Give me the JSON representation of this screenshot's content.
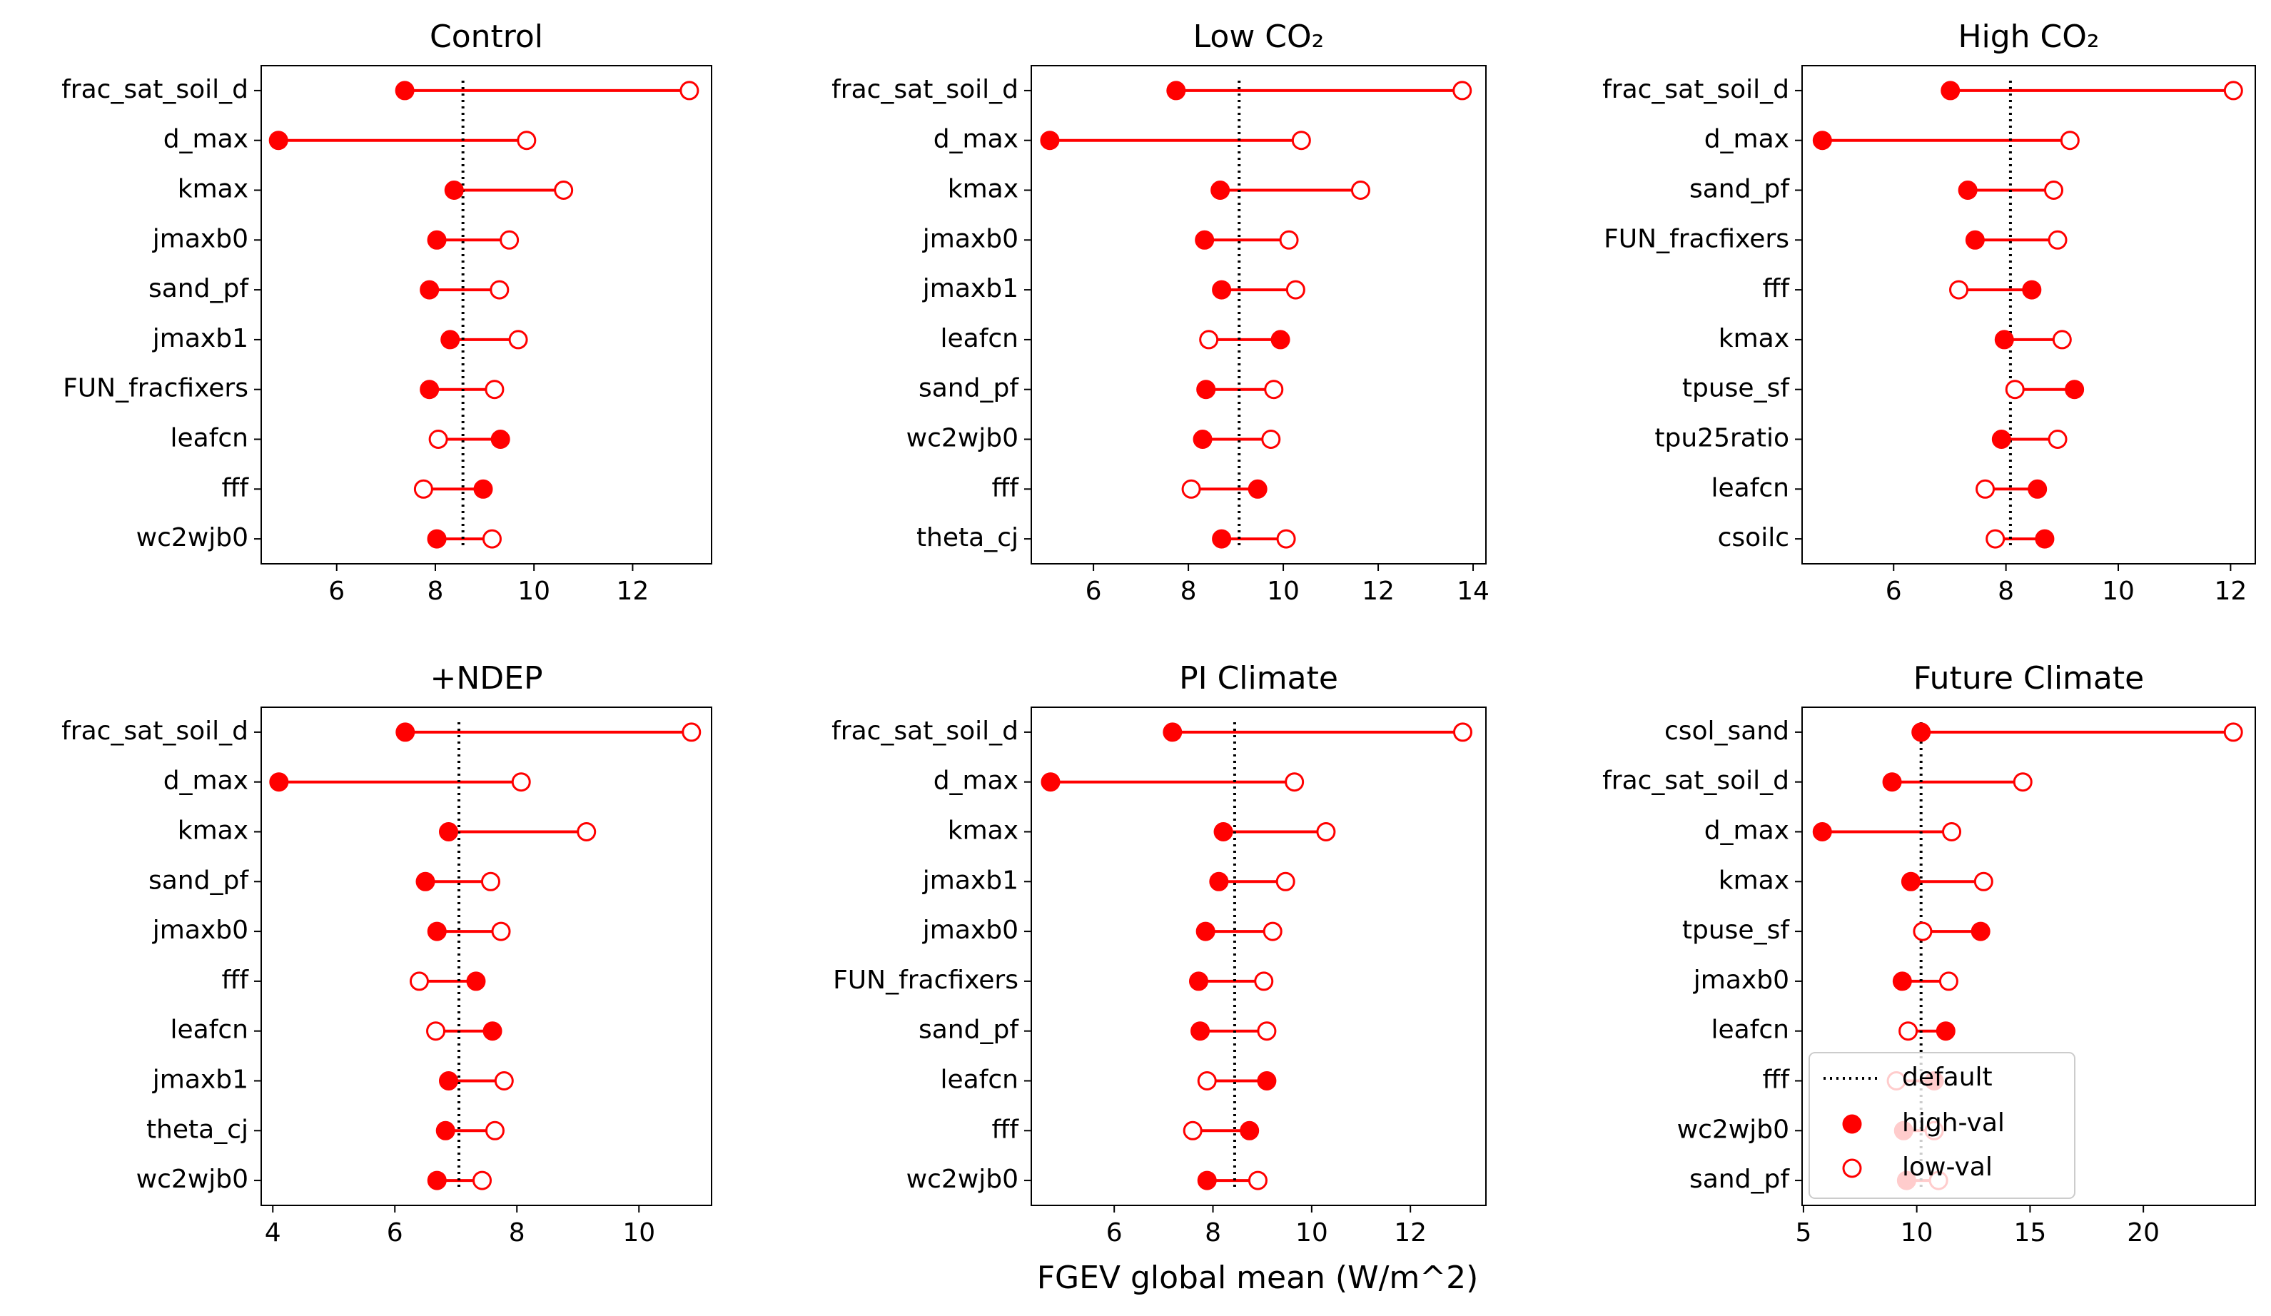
{
  "chart_data": [
    {
      "type": "lollipop",
      "title": "Control",
      "categories": [
        "frac_sat_soil_d",
        "d_max",
        "kmax",
        "jmaxb0",
        "sand_pf",
        "jmaxb1",
        "FUN_fracfixers",
        "leafcn",
        "fff",
        "wc2wjb0"
      ],
      "series": [
        {
          "color": "#ff0000",
          "marker": "filled",
          "values": [
            7.38,
            4.82,
            8.38,
            8.03,
            7.88,
            8.3,
            7.88,
            9.32,
            8.97,
            8.03
          ]
        },
        {
          "color": "#ff0000",
          "marker": "open",
          "values": [
            13.15,
            9.85,
            10.6,
            9.5,
            9.3,
            9.68,
            9.2,
            8.06,
            7.76,
            9.15
          ]
        }
      ],
      "default": {
        "value": 8.56,
        "color": "#000000"
      },
      "xlim": [
        4.47,
        13.6
      ],
      "xticks": [
        6,
        8,
        10,
        12
      ]
    },
    {
      "type": "lollipop",
      "title": "Low CO₂",
      "categories": [
        "frac_sat_soil_d",
        "d_max",
        "kmax",
        "jmaxb0",
        "jmaxb1",
        "leafcn",
        "sand_pf",
        "wc2wjb0",
        "fff",
        "theta_cj"
      ],
      "series": [
        {
          "color": "#ff0000",
          "marker": "filled",
          "values": [
            7.74,
            5.08,
            8.67,
            8.34,
            8.7,
            9.94,
            8.37,
            8.3,
            9.46,
            8.7
          ]
        },
        {
          "color": "#ff0000",
          "marker": "open",
          "values": [
            13.77,
            10.38,
            11.63,
            10.12,
            10.26,
            8.43,
            9.8,
            9.74,
            8.06,
            10.06
          ]
        }
      ],
      "default": {
        "value": 9.07,
        "color": "#000000"
      },
      "xlim": [
        4.69,
        14.27
      ],
      "xticks": [
        6,
        8,
        10,
        12,
        14
      ]
    },
    {
      "type": "lollipop",
      "title": "High CO₂",
      "categories": [
        "frac_sat_soil_d",
        "d_max",
        "sand_pf",
        "FUN_fracfixers",
        "fff",
        "kmax",
        "tpuse_sf",
        "tpu25ratio",
        "leafcn",
        "csoilc"
      ],
      "series": [
        {
          "color": "#ff0000",
          "marker": "filled",
          "values": [
            7.01,
            4.73,
            7.32,
            7.45,
            8.46,
            7.97,
            9.22,
            7.92,
            8.56,
            8.69
          ]
        },
        {
          "color": "#ff0000",
          "marker": "open",
          "values": [
            12.05,
            9.14,
            8.85,
            8.92,
            7.16,
            9.0,
            8.16,
            8.92,
            7.63,
            7.81
          ]
        }
      ],
      "default": {
        "value": 8.08,
        "color": "#000000"
      },
      "xlim": [
        4.37,
        12.44
      ],
      "xticks": [
        6,
        8,
        10,
        12
      ]
    },
    {
      "type": "lollipop",
      "title": "+NDEP",
      "categories": [
        "frac_sat_soil_d",
        "d_max",
        "kmax",
        "sand_pf",
        "jmaxb0",
        "fff",
        "leafcn",
        "jmaxb1",
        "theta_cj",
        "wc2wjb0"
      ],
      "series": [
        {
          "color": "#ff0000",
          "marker": "filled",
          "values": [
            6.17,
            4.1,
            6.88,
            6.5,
            6.69,
            7.33,
            7.6,
            6.88,
            6.83,
            6.69
          ]
        },
        {
          "color": "#ff0000",
          "marker": "open",
          "values": [
            10.86,
            8.07,
            9.14,
            7.57,
            7.74,
            6.4,
            6.67,
            7.79,
            7.64,
            7.43
          ]
        }
      ],
      "default": {
        "value": 7.05,
        "color": "#000000"
      },
      "xlim": [
        3.81,
        11.19
      ],
      "xticks": [
        4,
        6,
        8,
        10
      ]
    },
    {
      "type": "lollipop",
      "title": "PI Climate",
      "xlabel": "FGEV global mean (W/m^2)",
      "categories": [
        "frac_sat_soil_d",
        "d_max",
        "kmax",
        "jmaxb1",
        "jmaxb0",
        "FUN_fracfixers",
        "sand_pf",
        "leafcn",
        "fff",
        "wc2wjb0"
      ],
      "series": [
        {
          "color": "#ff0000",
          "marker": "filled",
          "values": [
            7.18,
            4.71,
            8.21,
            8.12,
            7.85,
            7.71,
            7.74,
            9.09,
            8.74,
            7.88
          ]
        },
        {
          "color": "#ff0000",
          "marker": "open",
          "values": [
            13.06,
            9.65,
            10.29,
            9.47,
            9.21,
            9.03,
            9.09,
            7.88,
            7.59,
            8.91
          ]
        }
      ],
      "default": {
        "value": 8.44,
        "color": "#000000"
      },
      "xlim": [
        4.32,
        13.53
      ],
      "xticks": [
        6,
        8,
        10,
        12
      ]
    },
    {
      "type": "lollipop",
      "title": "Future Climate",
      "categories": [
        "csol_sand",
        "frac_sat_soil_d",
        "d_max",
        "kmax",
        "tpuse_sf",
        "jmaxb0",
        "leafcn",
        "fff",
        "wc2wjb0",
        "sand_pf"
      ],
      "series": [
        {
          "name": "high-val",
          "color": "#ff0000",
          "marker": "filled",
          "values": [
            10.19,
            8.91,
            5.83,
            9.74,
            12.82,
            9.36,
            11.28,
            10.77,
            9.42,
            9.55
          ]
        },
        {
          "name": "low-val",
          "color": "#ff0000",
          "marker": "open",
          "values": [
            23.97,
            14.68,
            11.54,
            12.95,
            10.26,
            11.41,
            9.62,
            9.1,
            10.77,
            10.96
          ]
        }
      ],
      "default": {
        "name": "default",
        "value": 10.19,
        "color": "#000000"
      },
      "xlim": [
        4.94,
        24.94
      ],
      "xticks": [
        5,
        10,
        15,
        20
      ],
      "legend": "lower left"
    }
  ]
}
